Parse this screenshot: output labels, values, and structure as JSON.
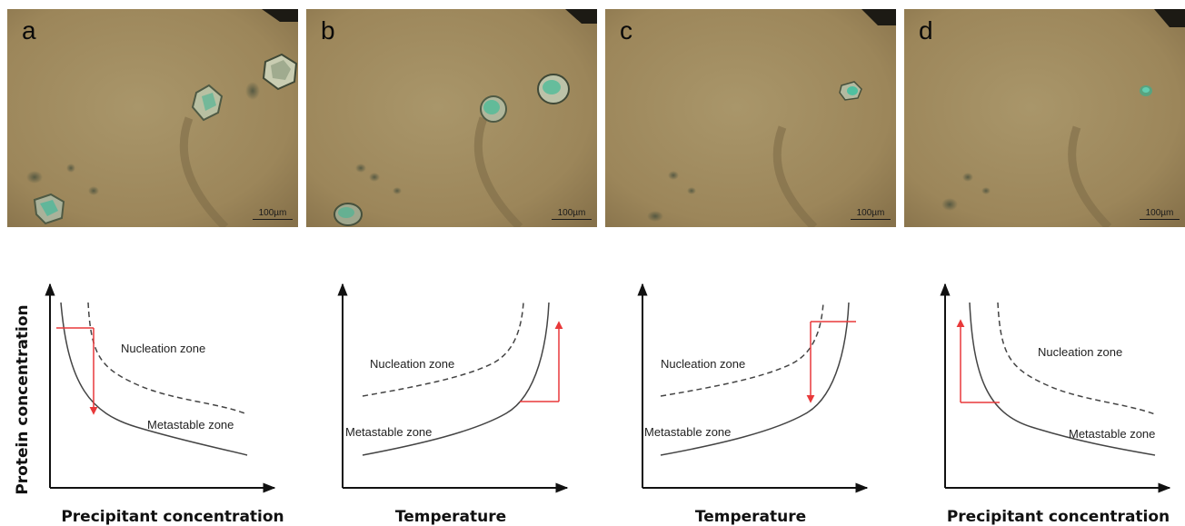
{
  "panels": [
    {
      "letter": "a",
      "scale": "100µm"
    },
    {
      "letter": "b",
      "scale": "100µm"
    },
    {
      "letter": "c",
      "scale": "100µm"
    },
    {
      "letter": "d",
      "scale": "100µm"
    }
  ],
  "plots": [
    {
      "x_label": "Precipitant concentration",
      "nucleation": "Nucleation zone",
      "metastable": "Metastable zone"
    },
    {
      "x_label": "Temperature",
      "nucleation": "Nucleation zone",
      "metastable": "Metastable zone"
    },
    {
      "x_label": "Temperature",
      "nucleation": "Nucleation zone",
      "metastable": "Metastable zone"
    },
    {
      "x_label": "Precipitant concentration",
      "nucleation": "Nucleation zone",
      "metastable": "Metastable zone"
    }
  ],
  "y_label": "Protein concentration",
  "colors": {
    "arrow": "#e8393a",
    "curve": "#444444",
    "axis": "#111111",
    "photo_bg": "#a08b60"
  }
}
